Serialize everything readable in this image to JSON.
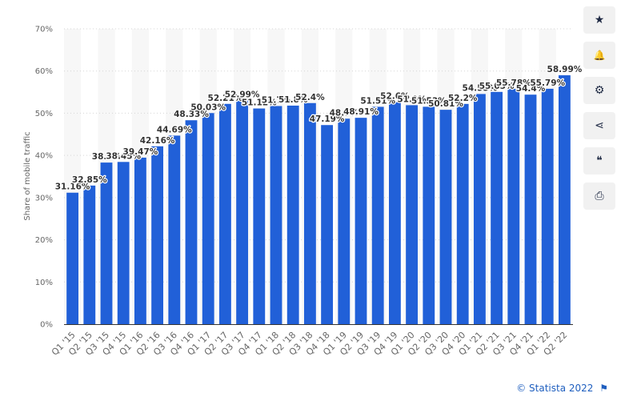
{
  "toolbar": {
    "buttons": [
      {
        "icon": "star-icon",
        "glyph": "★"
      },
      {
        "icon": "bell-icon",
        "glyph": "🔔"
      },
      {
        "icon": "gear-icon",
        "glyph": "⚙"
      },
      {
        "icon": "share-icon",
        "glyph": "⋖"
      },
      {
        "icon": "quote-icon",
        "glyph": "❝"
      },
      {
        "icon": "print-icon",
        "glyph": "⎙"
      }
    ]
  },
  "credit": {
    "text": "© Statista 2022",
    "flag_icon": "flag-icon",
    "flag_glyph": "⚑"
  },
  "chart_data": {
    "type": "bar",
    "title": "",
    "xlabel": "",
    "ylabel": "Share of mobile traffic",
    "ylim": [
      0,
      70
    ],
    "yticks": [
      "0%",
      "10%",
      "20%",
      "30%",
      "40%",
      "50%",
      "60%",
      "70%"
    ],
    "grid": true,
    "bar_color": "#2160d8",
    "categories": [
      "Q1 '15",
      "Q2 '15",
      "Q3 '15",
      "Q4 '15",
      "Q1 '16",
      "Q2 '16",
      "Q3 '16",
      "Q4 '16",
      "Q1 '17",
      "Q2 '17",
      "Q3 '17",
      "Q4 '17",
      "Q1 '18",
      "Q2 '18",
      "Q3 '18",
      "Q4 '18",
      "Q1 '19",
      "Q2 '19",
      "Q3 '19",
      "Q4 '19",
      "Q1 '20",
      "Q2 '20",
      "Q3 '20",
      "Q4 '20",
      "Q1 '21",
      "Q2 '21",
      "Q3 '21",
      "Q4 '21",
      "Q1 '22",
      "Q2 '22"
    ],
    "values": [
      31.16,
      32.85,
      38.3,
      38.45,
      39.47,
      42.16,
      44.69,
      48.33,
      50.03,
      52.21,
      52.99,
      51.12,
      51.7,
      51.8,
      52.4,
      47.19,
      48.7,
      48.91,
      51.51,
      52.6,
      51.9,
      51.53,
      50.81,
      52.2,
      54.55,
      55.05,
      55.78,
      54.4,
      55.79,
      58.99
    ],
    "labels": [
      "31.16%",
      "32.85%",
      "38.3%",
      "38.45%",
      "39.47%",
      "42.16%",
      "44.69%",
      "48.33%",
      "50.03%",
      "52.21%",
      "52.99%",
      "51.12%",
      "51.7%",
      "51.8%",
      "52.4%",
      "47.19%",
      "48.7%",
      "48.91%",
      "51.51%",
      "52.6%",
      "51.9%",
      "51.53%",
      "50.81%",
      "52.2%",
      "54.55%",
      "55.05%",
      "55.78%",
      "54.4%",
      "55.79%",
      "58.99%"
    ]
  }
}
